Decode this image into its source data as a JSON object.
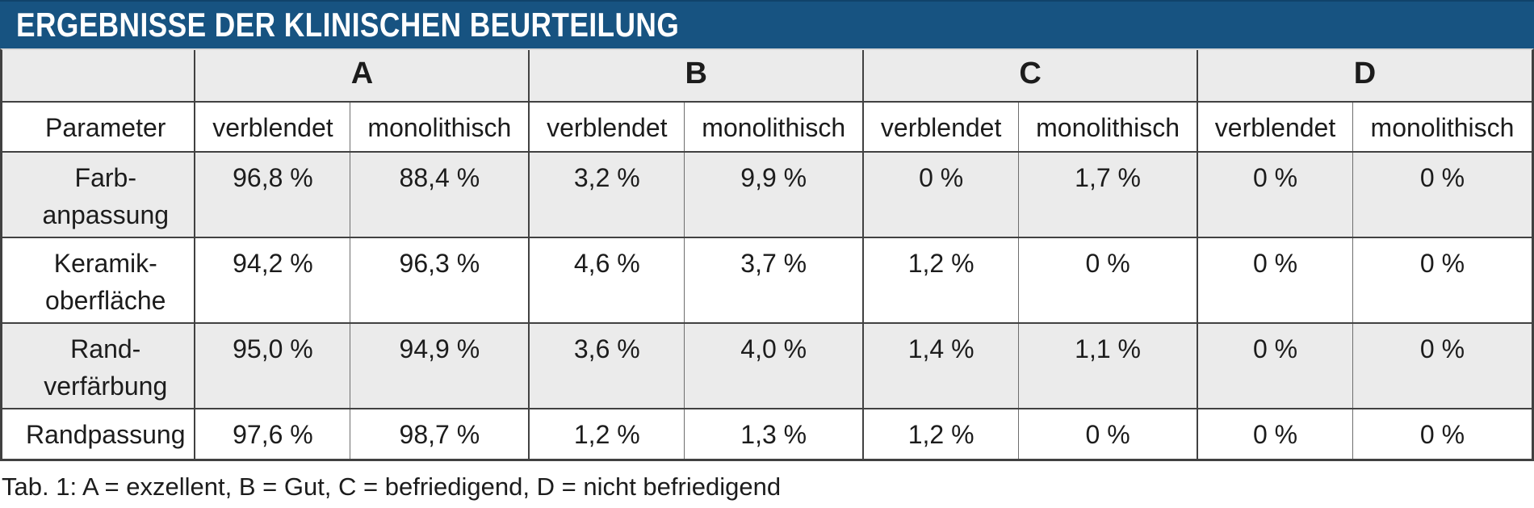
{
  "title": "ERGEBNISSE DER KLINISCHEN BEURTEILUNG",
  "caption": "Tab. 1: A = exzellent, B = Gut, C = befriedigend, D = nicht befriedigend",
  "colors": {
    "header_bg": "#175381",
    "header_fg": "#ffffff",
    "row_alt_bg": "#ebebeb",
    "row_bg": "#ffffff",
    "border_dark": "#414141",
    "border_light": "#6e6e6e",
    "text": "#1c1c1c"
  },
  "table": {
    "param_header": "Parameter",
    "groups": [
      "A",
      "B",
      "C",
      "D"
    ],
    "sub_headers": [
      "verblendet",
      "monolithisch"
    ],
    "rows": [
      {
        "parameter": [
          "Farb-",
          "anpassung"
        ],
        "values": [
          "96,8 %",
          "88,4 %",
          "3,2 %",
          "9,9 %",
          "0 %",
          "1,7 %",
          "0 %",
          "0 %"
        ]
      },
      {
        "parameter": [
          "Keramik-",
          "oberfläche"
        ],
        "values": [
          "94,2 %",
          "96,3 %",
          "4,6 %",
          "3,7 %",
          "1,2 %",
          "0 %",
          "0 %",
          "0 %"
        ]
      },
      {
        "parameter": [
          "Rand-",
          "verfärbung"
        ],
        "values": [
          "95,0 %",
          "94,9 %",
          "3,6 %",
          "4,0 %",
          "1,4 %",
          "1,1 %",
          "0 %",
          "0 %"
        ]
      },
      {
        "parameter": [
          "Randpassung"
        ],
        "values": [
          "97,6 %",
          "98,7 %",
          "1,2 %",
          "1,3 %",
          "1,2 %",
          "0 %",
          "0 %",
          "0 %"
        ]
      }
    ]
  },
  "chart_data": {
    "type": "table",
    "title": "Ergebnisse der klinischen Beurteilung",
    "unit": "%",
    "column_groups": [
      "A",
      "B",
      "C",
      "D"
    ],
    "sub_columns": [
      "verblendet",
      "monolithisch"
    ],
    "row_label_header": "Parameter",
    "rows": [
      {
        "parameter": "Farbanpassung",
        "values": [
          96.8,
          88.4,
          3.2,
          9.9,
          0,
          1.7,
          0,
          0
        ]
      },
      {
        "parameter": "Keramikoberfläche",
        "values": [
          94.2,
          96.3,
          4.6,
          3.7,
          1.2,
          0,
          0,
          0
        ]
      },
      {
        "parameter": "Randverfärbung",
        "values": [
          95.0,
          94.9,
          3.6,
          4.0,
          1.4,
          1.1,
          0,
          0
        ]
      },
      {
        "parameter": "Randpassung",
        "values": [
          97.6,
          98.7,
          1.2,
          1.3,
          1.2,
          0,
          0,
          0
        ]
      }
    ],
    "legend": "A = exzellent, B = Gut, C = befriedigend, D = nicht befriedigend"
  }
}
